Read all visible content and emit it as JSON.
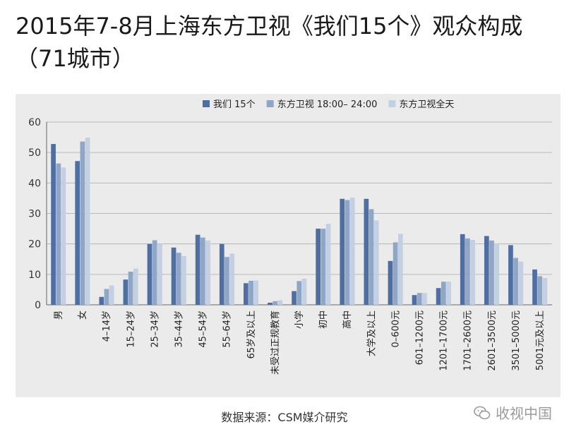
{
  "header": {
    "title": "2015年7-8月上海东方卫视《我们15个》观众构成",
    "subtitle": "（71城市）"
  },
  "footer": {
    "source": "数据来源：CSM媒介研究"
  },
  "watermark": {
    "text": "收视中国",
    "icon": "wechat-icon"
  },
  "colors": {
    "series": [
      "#4f6fa3",
      "#8fa6c6",
      "#c3cfe2"
    ],
    "panel_bg": "#ebebeb",
    "grid": "#b9b9b9"
  },
  "chart_data": {
    "type": "bar",
    "title": "",
    "xlabel": "",
    "ylabel": "",
    "ylim": [
      0,
      60
    ],
    "yticks": [
      0,
      10,
      20,
      30,
      40,
      50,
      60
    ],
    "grid": true,
    "legend_position": "top-center",
    "categories": [
      "男",
      "女",
      "4–14岁",
      "15–24岁",
      "25–34岁",
      "35–44岁",
      "45–54岁",
      "55–64岁",
      "65岁及以上",
      "未受过正规教育",
      "小学",
      "初中",
      "高中",
      "大学及以上",
      "0–600元",
      "601–1200元",
      "1201–1700元",
      "1701–2600元",
      "2601–3500元",
      "3501–5000元",
      "5001元及以上"
    ],
    "series": [
      {
        "name": "我们 15个",
        "values": [
          52.8,
          47.2,
          2.6,
          8.3,
          20.0,
          18.8,
          23.0,
          20.0,
          7.1,
          0.7,
          4.5,
          25.0,
          34.8,
          34.8,
          14.4,
          3.2,
          5.5,
          23.2,
          22.6,
          19.6,
          11.6
        ]
      },
      {
        "name": "东方卫视 18:00– 24:00",
        "values": [
          46.4,
          53.6,
          5.2,
          10.9,
          21.2,
          17.1,
          22.1,
          15.7,
          7.9,
          1.2,
          7.8,
          25.0,
          34.4,
          31.4,
          20.5,
          3.9,
          7.6,
          21.8,
          21.1,
          15.4,
          9.4
        ]
      },
      {
        "name": "东方卫视全天",
        "values": [
          45.1,
          54.9,
          6.4,
          11.9,
          20.0,
          16.0,
          21.1,
          16.8,
          8.0,
          1.5,
          8.6,
          26.6,
          35.2,
          27.7,
          23.3,
          3.9,
          7.6,
          21.3,
          20.1,
          14.2,
          8.8
        ]
      }
    ]
  }
}
